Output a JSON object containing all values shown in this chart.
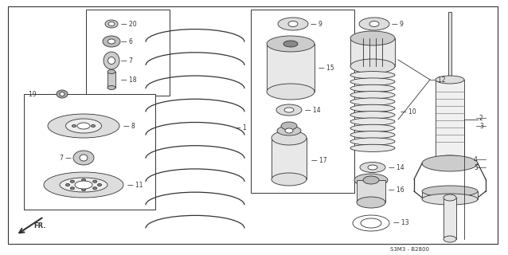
{
  "bg_color": "#ffffff",
  "line_color": "#333333",
  "diagram_code": "S3M3 - B2800"
}
